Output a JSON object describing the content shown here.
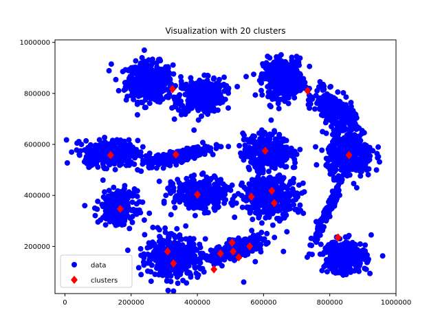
{
  "chart_data": {
    "type": "scatter",
    "title": "Visualization with 20 clusters",
    "xlabel": "",
    "ylabel": "",
    "xlim": [
      -30000,
      1000000
    ],
    "ylim": [
      15000,
      1010000
    ],
    "x_ticks": [
      0,
      200000,
      400000,
      600000,
      800000,
      1000000
    ],
    "x_tick_labels": [
      "0",
      "200000",
      "400000",
      "600000",
      "800000",
      "1000000"
    ],
    "y_ticks": [
      200000,
      400000,
      600000,
      800000,
      1000000
    ],
    "y_tick_labels": [
      "200000",
      "400000",
      "600000",
      "800000",
      "1000000"
    ],
    "grid": false,
    "legend_position": "lower-left",
    "series": [
      {
        "name": "data",
        "marker": "circle",
        "color": "#0000ff",
        "blobs": [
          {
            "cx": 255000,
            "cy": 845000,
            "sx": 35000,
            "sy": 38000,
            "rho": 0.0,
            "n": 420
          },
          {
            "cx": 410000,
            "cy": 790000,
            "sx": 35000,
            "sy": 33000,
            "rho": 0.1,
            "n": 380
          },
          {
            "cx": 660000,
            "cy": 860000,
            "sx": 30000,
            "sy": 38000,
            "rho": 0.0,
            "n": 360
          },
          {
            "cx": 815000,
            "cy": 730000,
            "sx": 30000,
            "sy": 40000,
            "rho": -0.6,
            "n": 340
          },
          {
            "cx": 140000,
            "cy": 565000,
            "sx": 40000,
            "sy": 25000,
            "rho": 0.0,
            "n": 380
          },
          {
            "cx": 345000,
            "cy": 555000,
            "sx": 45000,
            "sy": 18000,
            "rho": 0.8,
            "n": 320
          },
          {
            "cx": 610000,
            "cy": 570000,
            "sx": 35000,
            "sy": 35000,
            "rho": 0.0,
            "n": 360
          },
          {
            "cx": 860000,
            "cy": 555000,
            "sx": 35000,
            "sy": 40000,
            "rho": 0.0,
            "n": 340
          },
          {
            "cx": 160000,
            "cy": 355000,
            "sx": 25000,
            "sy": 30000,
            "rho": 0.0,
            "n": 300
          },
          {
            "cx": 410000,
            "cy": 405000,
            "sx": 40000,
            "sy": 30000,
            "rho": 0.0,
            "n": 360
          },
          {
            "cx": 620000,
            "cy": 395000,
            "sx": 40000,
            "sy": 38000,
            "rho": 0.0,
            "n": 380
          },
          {
            "cx": 790000,
            "cy": 330000,
            "sx": 25000,
            "sy": 70000,
            "rho": 0.97,
            "n": 160
          },
          {
            "cx": 325000,
            "cy": 160000,
            "sx": 40000,
            "sy": 40000,
            "rho": 0.0,
            "n": 400
          },
          {
            "cx": 510000,
            "cy": 185000,
            "sx": 45000,
            "sy": 25000,
            "rho": 0.75,
            "n": 320
          },
          {
            "cx": 845000,
            "cy": 160000,
            "sx": 32000,
            "sy": 32000,
            "rho": 0.0,
            "n": 320
          }
        ],
        "outliers": [
          [
            140000,
            915000
          ],
          [
            305000,
            880000
          ],
          [
            350000,
            865000
          ],
          [
            230000,
            765000
          ],
          [
            450000,
            860000
          ],
          [
            480000,
            835000
          ],
          [
            368000,
            735000
          ],
          [
            602000,
            910000
          ],
          [
            615000,
            805000
          ],
          [
            700000,
            945000
          ],
          [
            693000,
            783000
          ],
          [
            778000,
            650000
          ],
          [
            20000,
            570000
          ],
          [
            50000,
            600000
          ],
          [
            240000,
            530000
          ],
          [
            230000,
            495000
          ],
          [
            60000,
            360000
          ],
          [
            115000,
            460000
          ],
          [
            210000,
            425000
          ],
          [
            225000,
            375000
          ],
          [
            195000,
            270000
          ],
          [
            230000,
            165000
          ],
          [
            190000,
            185000
          ],
          [
            255000,
            330000
          ],
          [
            305000,
            400000
          ],
          [
            285000,
            455000
          ],
          [
            470000,
            455000
          ],
          [
            540000,
            385000
          ],
          [
            505000,
            440000
          ],
          [
            690000,
            450000
          ],
          [
            690000,
            510000
          ],
          [
            700000,
            345000
          ],
          [
            720000,
            330000
          ],
          [
            930000,
            575000
          ],
          [
            920000,
            540000
          ],
          [
            910000,
            110000
          ],
          [
            925000,
            245000
          ],
          [
            365000,
            280000
          ],
          [
            380000,
            80000
          ],
          [
            420000,
            100000
          ],
          [
            540000,
            60000
          ],
          [
            610000,
            250000
          ],
          [
            660000,
            180000
          ],
          [
            590000,
            190000
          ],
          [
            575000,
            140000
          ],
          [
            580000,
            505000
          ],
          [
            710000,
            580000
          ]
        ]
      },
      {
        "name": "clusters",
        "marker": "diamond",
        "color": "#ff0000",
        "points": [
          [
            325000,
            817000
          ],
          [
            733000,
            810000
          ],
          [
            138000,
            558000
          ],
          [
            335000,
            560000
          ],
          [
            605000,
            575000
          ],
          [
            858000,
            558000
          ],
          [
            167000,
            347000
          ],
          [
            400000,
            403000
          ],
          [
            563000,
            395000
          ],
          [
            625000,
            418000
          ],
          [
            632000,
            370000
          ],
          [
            825000,
            235000
          ],
          [
            310000,
            180000
          ],
          [
            328000,
            133000
          ],
          [
            450000,
            110000
          ],
          [
            470000,
            172000
          ],
          [
            505000,
            215000
          ],
          [
            508000,
            180000
          ],
          [
            525000,
            157000
          ],
          [
            558000,
            200000
          ]
        ]
      }
    ]
  }
}
